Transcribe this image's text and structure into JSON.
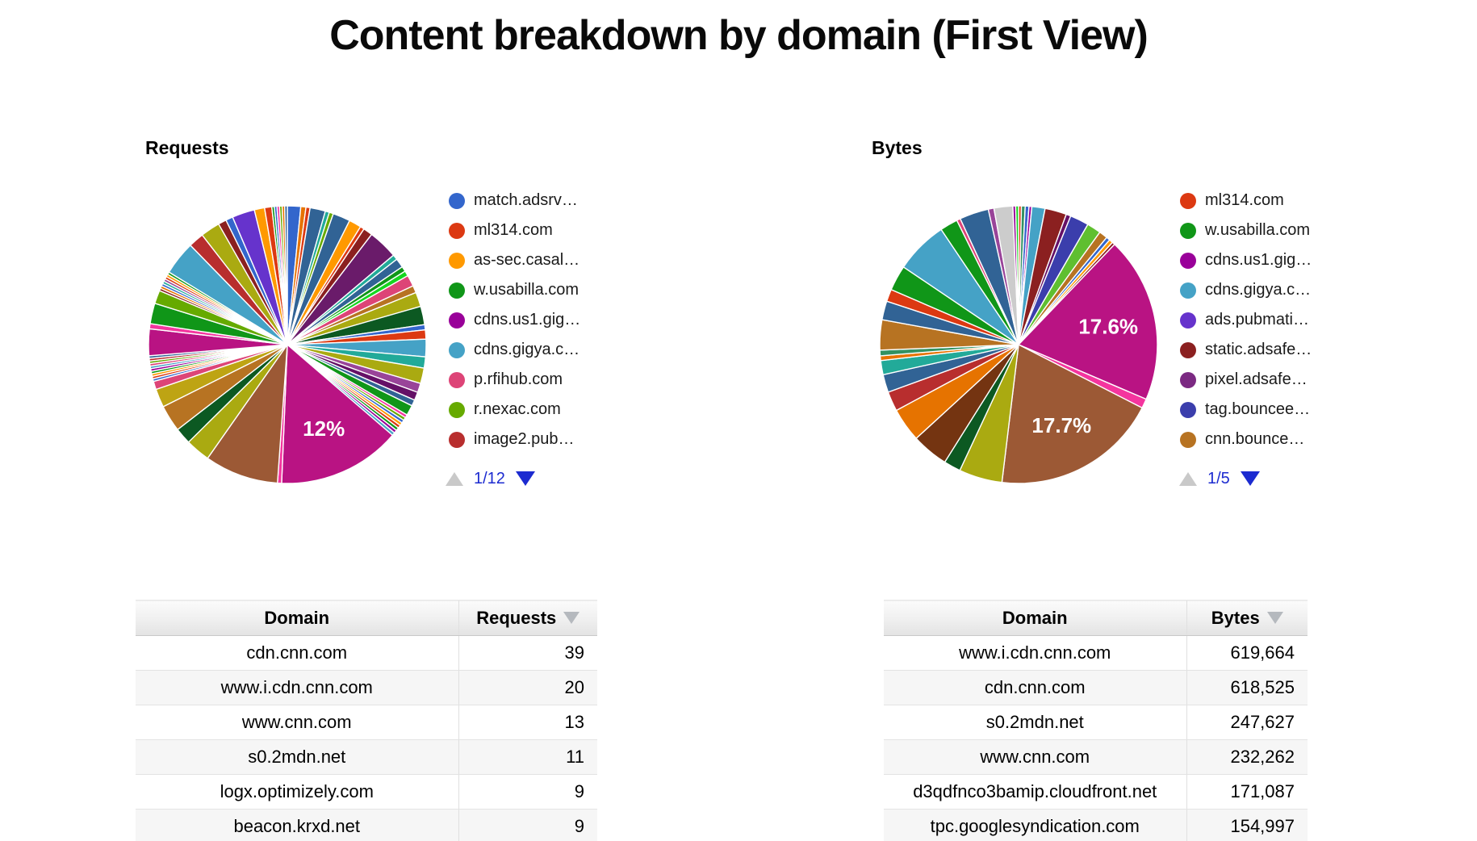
{
  "page": {
    "title": "Content breakdown by domain (First View)"
  },
  "colors": {
    "legend_page_active": "#1C2BD0",
    "legend_page_disabled": "#C9C9C9",
    "big_magenta_slice": "#B91383",
    "big_brown_slice": "#9C5935"
  },
  "chart_data": [
    {
      "type": "pie",
      "title": "Requests",
      "legend_position": "right",
      "visible_slice_labels": [
        "12%"
      ],
      "pagination": {
        "label": "1/12"
      },
      "legend": [
        {
          "label": "match.adsrv…",
          "color": "#3366CC"
        },
        {
          "label": "ml314.com",
          "color": "#DC3912"
        },
        {
          "label": "as-sec.casal…",
          "color": "#FF9900"
        },
        {
          "label": "w.usabilla.com",
          "color": "#109618"
        },
        {
          "label": "cdns.us1.gig…",
          "color": "#990099"
        },
        {
          "label": "cdns.gigya.c…",
          "color": "#45A2C6"
        },
        {
          "label": "p.rfihub.com",
          "color": "#DD4477"
        },
        {
          "label": "r.nexac.com",
          "color": "#66AA00"
        },
        {
          "label": "image2.pub…",
          "color": "#B82E2E"
        }
      ],
      "slices": [
        {
          "c": "#3366CC",
          "v": 1.3
        },
        {
          "c": "#E67300",
          "v": 0.5
        },
        {
          "c": "#DC3912",
          "v": 0.4
        },
        {
          "c": "#316395",
          "v": 1.5
        },
        {
          "c": "#22AA99",
          "v": 0.4
        },
        {
          "c": "#66AA00",
          "v": 0.4
        },
        {
          "c": "#316395",
          "v": 1.7
        },
        {
          "c": "#FF9900",
          "v": 1.2
        },
        {
          "c": "#DC3912",
          "v": 0.4
        },
        {
          "c": "#8B2020",
          "v": 0.9
        },
        {
          "c": "#6A1B6A",
          "v": 2.9
        },
        {
          "c": "#22AA99",
          "v": 0.5
        },
        {
          "c": "#316395",
          "v": 0.9
        },
        {
          "c": "#109618",
          "v": 0.5
        },
        {
          "c": "#16D620",
          "v": 0.5
        },
        {
          "c": "#DD4477",
          "v": 1.1
        },
        {
          "c": "#B77322",
          "v": 0.7
        },
        {
          "c": "#AAAA11",
          "v": 1.4
        },
        {
          "c": "#0C5922",
          "v": 1.8
        },
        {
          "c": "#3366CC",
          "v": 0.5
        },
        {
          "c": "#DC3912",
          "v": 0.9
        },
        {
          "c": "#45A2C6",
          "v": 1.7
        },
        {
          "c": "#22AA99",
          "v": 1.1
        },
        {
          "c": "#AAAA11",
          "v": 1.5
        },
        {
          "c": "#994499",
          "v": 0.9
        },
        {
          "c": "#651067",
          "v": 0.8
        },
        {
          "c": "#316395",
          "v": 0.6
        },
        {
          "c": "#109618",
          "v": 1.0
        },
        {
          "c": "#F4359E",
          "v": 0.3
        },
        {
          "c": "#66AA00",
          "v": 0.3
        },
        {
          "c": "#3366CC",
          "v": 0.3
        },
        {
          "c": "#FF9900",
          "v": 0.3
        },
        {
          "c": "#DC3912",
          "v": 0.3
        },
        {
          "c": "#109618",
          "v": 0.3
        },
        {
          "c": "#990099",
          "v": 0.3
        },
        {
          "c": "#45A2C6",
          "v": 0.3
        },
        {
          "c": "#B91383",
          "v": 12.0,
          "l": "12%"
        },
        {
          "c": "#F4359E",
          "v": 0.4
        },
        {
          "c": "#9C5935",
          "v": 7.2
        },
        {
          "c": "#AAAA11",
          "v": 2.4
        },
        {
          "c": "#0C5922",
          "v": 1.6
        },
        {
          "c": "#B77322",
          "v": 2.6
        },
        {
          "c": "#BEA413",
          "v": 1.8
        },
        {
          "c": "#DD4477",
          "v": 0.8
        },
        {
          "c": "#3366CC",
          "v": 0.25
        },
        {
          "c": "#DC3912",
          "v": 0.25
        },
        {
          "c": "#FF9900",
          "v": 0.25
        },
        {
          "c": "#109618",
          "v": 0.25
        },
        {
          "c": "#990099",
          "v": 0.25
        },
        {
          "c": "#45A2C6",
          "v": 0.25
        },
        {
          "c": "#DD4477",
          "v": 0.25
        },
        {
          "c": "#66AA00",
          "v": 0.25
        },
        {
          "c": "#B82E2E",
          "v": 0.25
        },
        {
          "c": "#316395",
          "v": 0.25
        },
        {
          "c": "#B91383",
          "v": 2.6
        },
        {
          "c": "#F4359E",
          "v": 0.5
        },
        {
          "c": "#109618",
          "v": 2.0
        },
        {
          "c": "#66AA00",
          "v": 1.3
        },
        {
          "c": "#8B2020",
          "v": 0.25
        },
        {
          "c": "#E67300",
          "v": 0.25
        },
        {
          "c": "#3366CC",
          "v": 0.25
        },
        {
          "c": "#22AA99",
          "v": 0.25
        },
        {
          "c": "#994499",
          "v": 0.25
        },
        {
          "c": "#DC3912",
          "v": 0.25
        },
        {
          "c": "#FF9900",
          "v": 0.25
        },
        {
          "c": "#109618",
          "v": 0.25
        },
        {
          "c": "#45A2C6",
          "v": 3.3
        },
        {
          "c": "#B82E2E",
          "v": 1.5
        },
        {
          "c": "#AAAA11",
          "v": 1.9
        },
        {
          "c": "#8B2020",
          "v": 0.8
        },
        {
          "c": "#3366CC",
          "v": 0.7
        },
        {
          "c": "#6633CC",
          "v": 2.2
        },
        {
          "c": "#FF9900",
          "v": 1.0
        },
        {
          "c": "#DC3912",
          "v": 0.7
        },
        {
          "c": "#109618",
          "v": 0.25
        },
        {
          "c": "#3366CC",
          "v": 0.25
        },
        {
          "c": "#F4359E",
          "v": 0.25
        },
        {
          "c": "#66AA00",
          "v": 0.25
        },
        {
          "c": "#E67300",
          "v": 0.25
        },
        {
          "c": "#316395",
          "v": 0.25
        }
      ]
    },
    {
      "type": "pie",
      "title": "Bytes",
      "legend_position": "right",
      "visible_slice_labels": [
        "17.6%",
        "17.7%"
      ],
      "pagination": {
        "label": "1/5"
      },
      "legend": [
        {
          "label": "ml314.com",
          "color": "#DC3912"
        },
        {
          "label": "w.usabilla.com",
          "color": "#109618"
        },
        {
          "label": "cdns.us1.gig…",
          "color": "#990099"
        },
        {
          "label": "cdns.gigya.c…",
          "color": "#45A2C6"
        },
        {
          "label": "ads.pubmati…",
          "color": "#6633CC"
        },
        {
          "label": "static.adsafe…",
          "color": "#8B2020"
        },
        {
          "label": "pixel.adsafe…",
          "color": "#7B2982"
        },
        {
          "label": "tag.bouncee…",
          "color": "#3B3EAC"
        },
        {
          "label": "cnn.bounce…",
          "color": "#B77322"
        }
      ],
      "slices": [
        {
          "c": "#DC3912",
          "v": 0.3
        },
        {
          "c": "#329262",
          "v": 0.4
        },
        {
          "c": "#3366CC",
          "v": 0.4
        },
        {
          "c": "#990099",
          "v": 0.3
        },
        {
          "c": "#45A2C6",
          "v": 1.4
        },
        {
          "c": "#8B2020",
          "v": 2.3
        },
        {
          "c": "#651067",
          "v": 0.5
        },
        {
          "c": "#3B3EAC",
          "v": 2.0
        },
        {
          "c": "#5FBF30",
          "v": 1.5
        },
        {
          "c": "#B77322",
          "v": 0.9
        },
        {
          "c": "#3366CC",
          "v": 0.4
        },
        {
          "c": "#FF9900",
          "v": 0.4
        },
        {
          "c": "#8B2020",
          "v": 0.3
        },
        {
          "c": "#B91383",
          "v": 17.6,
          "l": "17.6%"
        },
        {
          "c": "#F4359E",
          "v": 1.0
        },
        {
          "c": "#9C5935",
          "v": 17.7,
          "l": "17.7%"
        },
        {
          "c": "#AAAA11",
          "v": 4.6
        },
        {
          "c": "#0C5922",
          "v": 1.8
        },
        {
          "c": "#743411",
          "v": 3.9
        },
        {
          "c": "#E67300",
          "v": 3.6
        },
        {
          "c": "#B82E2E",
          "v": 2.1
        },
        {
          "c": "#316395",
          "v": 1.9
        },
        {
          "c": "#22AA99",
          "v": 1.5
        },
        {
          "c": "#E67300",
          "v": 0.5
        },
        {
          "c": "#329262",
          "v": 0.6
        },
        {
          "c": "#B77322",
          "v": 3.2
        },
        {
          "c": "#316395",
          "v": 2.0
        },
        {
          "c": "#DC3912",
          "v": 1.3
        },
        {
          "c": "#109618",
          "v": 2.7
        },
        {
          "c": "#45A2C6",
          "v": 5.6
        },
        {
          "c": "#109618",
          "v": 1.9
        },
        {
          "c": "#DD4477",
          "v": 0.4
        },
        {
          "c": "#316395",
          "v": 3.1
        },
        {
          "c": "#994499",
          "v": 0.6
        },
        {
          "c": "#CCCCCC",
          "v": 2.0
        },
        {
          "c": "#990099",
          "v": 0.3
        },
        {
          "c": "#16D620",
          "v": 0.3
        }
      ]
    }
  ],
  "tables": {
    "requests": {
      "headers": [
        "Domain",
        "Requests"
      ],
      "rows": [
        [
          "cdn.cnn.com",
          "39"
        ],
        [
          "www.i.cdn.cnn.com",
          "20"
        ],
        [
          "www.cnn.com",
          "13"
        ],
        [
          "s0.2mdn.net",
          "11"
        ],
        [
          "logx.optimizely.com",
          "9"
        ],
        [
          "beacon.krxd.net",
          "9"
        ]
      ]
    },
    "bytes": {
      "headers": [
        "Domain",
        "Bytes"
      ],
      "rows": [
        [
          "www.i.cdn.cnn.com",
          "619,664"
        ],
        [
          "cdn.cnn.com",
          "618,525"
        ],
        [
          "s0.2mdn.net",
          "247,627"
        ],
        [
          "www.cnn.com",
          "232,262"
        ],
        [
          "d3qdfnco3bamip.cloudfront.net",
          "171,087"
        ],
        [
          "tpc.googlesyndication.com",
          "154,997"
        ]
      ]
    }
  }
}
